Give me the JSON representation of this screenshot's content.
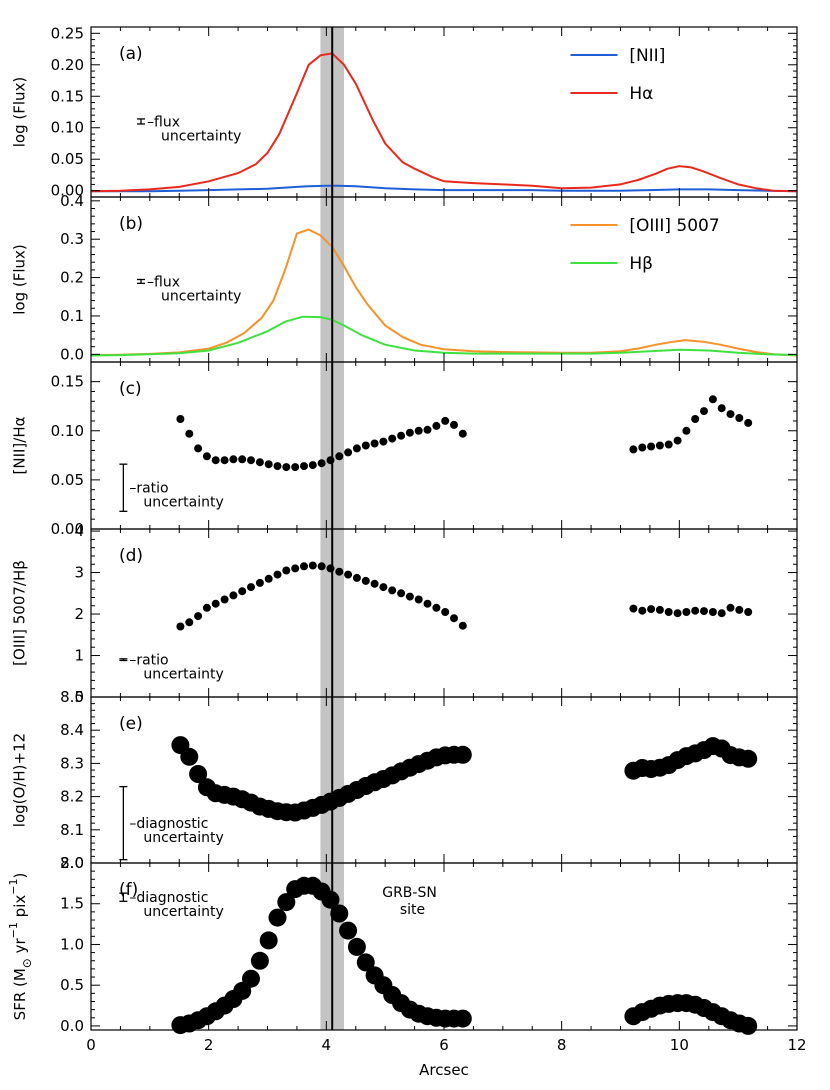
{
  "chart_data": {
    "type": "line",
    "xlabel": "Arcsec",
    "xlim": [
      0,
      12
    ],
    "xticks": [
      "0",
      "2",
      "4",
      "6",
      "8",
      "10",
      "12"
    ],
    "marker_line": {
      "x": 4.1,
      "band": [
        3.9,
        4.3
      ]
    },
    "site_label": [
      "GRB-SN",
      "site"
    ],
    "panels": [
      {
        "id": "a",
        "letter": "(a)",
        "type": "line",
        "ylabel": "log (Flux)",
        "ylim": [
          -0.01,
          0.26
        ],
        "yticks": [
          0.0,
          0.05,
          0.1,
          0.15,
          0.2,
          0.25
        ],
        "ytick_labels": [
          "0.00",
          "0.05",
          "0.10",
          "0.15",
          "0.20",
          "0.25"
        ],
        "uncertainty": {
          "lines": [
            "–flux",
            "uncertainty"
          ],
          "x": 0.85,
          "y": 0.11,
          "half": 0.004
        },
        "series": [
          {
            "name": "[NII]",
            "color": "#1f5fd6",
            "x": [
              0,
              0.5,
              1.0,
              1.5,
              2.0,
              2.5,
              3.0,
              3.5,
              3.7,
              4.0,
              4.2,
              4.5,
              5.0,
              5.5,
              6.0,
              6.5,
              7.0,
              7.5,
              8.0,
              8.5,
              9.0,
              9.5,
              10.0,
              10.5,
              11.0,
              11.5,
              12.0
            ],
            "y": [
              -0.001,
              -0.001,
              -0.001,
              0.0,
              0.001,
              0.002,
              0.003,
              0.006,
              0.007,
              0.008,
              0.008,
              0.007,
              0.004,
              0.002,
              0.001,
              0.001,
              0.001,
              0.001,
              0.0,
              0.0,
              0.0,
              0.001,
              0.002,
              0.002,
              0.001,
              0.0,
              -0.001
            ]
          },
          {
            "name": "Hα",
            "color": "#e8291c",
            "x": [
              0,
              0.5,
              1.0,
              1.5,
              2.0,
              2.5,
              2.8,
              3.0,
              3.2,
              3.5,
              3.7,
              3.9,
              4.1,
              4.3,
              4.5,
              4.8,
              5.0,
              5.3,
              5.5,
              5.8,
              6.0,
              6.5,
              7.0,
              7.5,
              8.0,
              8.5,
              9.0,
              9.3,
              9.6,
              9.8,
              10.0,
              10.2,
              10.4,
              10.7,
              11.0,
              11.3,
              11.6,
              12.0
            ],
            "y": [
              -0.001,
              0.0,
              0.002,
              0.006,
              0.015,
              0.028,
              0.042,
              0.06,
              0.09,
              0.155,
              0.2,
              0.215,
              0.218,
              0.2,
              0.17,
              0.11,
              0.075,
              0.045,
              0.035,
              0.022,
              0.015,
              0.012,
              0.01,
              0.008,
              0.004,
              0.005,
              0.01,
              0.017,
              0.027,
              0.035,
              0.039,
              0.037,
              0.031,
              0.02,
              0.01,
              0.004,
              0.0,
              -0.001
            ]
          }
        ]
      },
      {
        "id": "b",
        "letter": "(b)",
        "type": "line",
        "ylabel": "log (Flux)",
        "ylim": [
          -0.02,
          0.41
        ],
        "yticks": [
          0.0,
          0.1,
          0.2,
          0.3,
          0.4
        ],
        "ytick_labels": [
          "0.0",
          "0.1",
          "0.2",
          "0.3",
          "0.4"
        ],
        "uncertainty": {
          "lines": [
            "–flux",
            "uncertainty"
          ],
          "x": 0.85,
          "y": 0.19,
          "half": 0.005
        },
        "series": [
          {
            "name": "[OIII] 5007",
            "color": "#f5922a",
            "x": [
              0,
              0.5,
              1.0,
              1.5,
              2.0,
              2.3,
              2.6,
              2.9,
              3.1,
              3.3,
              3.5,
              3.7,
              3.9,
              4.1,
              4.3,
              4.5,
              4.7,
              5.0,
              5.3,
              5.6,
              6.0,
              6.5,
              7.0,
              7.5,
              8.0,
              8.5,
              9.0,
              9.3,
              9.6,
              9.9,
              10.1,
              10.4,
              10.7,
              11.0,
              11.3,
              11.6,
              12.0
            ],
            "y": [
              -0.002,
              -0.001,
              0.001,
              0.005,
              0.015,
              0.03,
              0.055,
              0.095,
              0.14,
              0.22,
              0.315,
              0.325,
              0.31,
              0.28,
              0.23,
              0.175,
              0.13,
              0.075,
              0.045,
              0.025,
              0.013,
              0.008,
              0.006,
              0.005,
              0.004,
              0.004,
              0.008,
              0.015,
              0.025,
              0.033,
              0.037,
              0.033,
              0.025,
              0.015,
              0.006,
              0.0,
              -0.003
            ]
          },
          {
            "name": "Hβ",
            "color": "#3ee23e",
            "x": [
              0,
              0.5,
              1.0,
              1.5,
              2.0,
              2.5,
              3.0,
              3.3,
              3.6,
              3.9,
              4.1,
              4.3,
              4.6,
              5.0,
              5.5,
              6.0,
              6.5,
              7.0,
              7.5,
              8.0,
              8.5,
              9.0,
              9.5,
              10.0,
              10.5,
              11.0,
              11.5,
              12.0
            ],
            "y": [
              -0.003,
              -0.002,
              0.0,
              0.003,
              0.01,
              0.03,
              0.06,
              0.085,
              0.098,
              0.097,
              0.09,
              0.075,
              0.05,
              0.025,
              0.01,
              0.004,
              0.002,
              0.002,
              0.002,
              0.002,
              0.002,
              0.004,
              0.008,
              0.012,
              0.01,
              0.004,
              0.0,
              -0.002
            ]
          }
        ]
      },
      {
        "id": "c",
        "letter": "(c)",
        "type": "scatter",
        "ylabel": "[NII]/Hα",
        "ylim": [
          0.0,
          0.17
        ],
        "yticks": [
          0.0,
          0.05,
          0.1,
          0.15
        ],
        "ytick_labels": [
          "0.00",
          "0.05",
          "0.10",
          "0.15"
        ],
        "marker_radius": 4,
        "uncertainty": {
          "lines": [
            "–ratio",
            "uncertainty"
          ],
          "x": 0.55,
          "y": 0.042,
          "half": 0.024
        },
        "series": [
          {
            "name": "",
            "color": "#000000",
            "x": [
              1.52,
              1.67,
              1.82,
              1.97,
              2.12,
              2.27,
              2.42,
              2.57,
              2.72,
              2.87,
              3.02,
              3.17,
              3.32,
              3.47,
              3.62,
              3.77,
              3.92,
              4.07,
              4.22,
              4.37,
              4.52,
              4.67,
              4.82,
              4.97,
              5.12,
              5.27,
              5.42,
              5.57,
              5.72,
              5.87,
              6.02,
              6.17,
              6.32,
              9.22,
              9.37,
              9.52,
              9.67,
              9.82,
              9.97,
              10.12,
              10.27,
              10.42,
              10.57,
              10.72,
              10.87,
              11.02,
              11.17
            ],
            "y": [
              0.112,
              0.097,
              0.082,
              0.074,
              0.07,
              0.07,
              0.071,
              0.071,
              0.07,
              0.068,
              0.066,
              0.064,
              0.063,
              0.063,
              0.064,
              0.065,
              0.067,
              0.07,
              0.074,
              0.078,
              0.082,
              0.085,
              0.087,
              0.089,
              0.092,
              0.095,
              0.098,
              0.1,
              0.101,
              0.105,
              0.11,
              0.106,
              0.097,
              0.081,
              0.083,
              0.084,
              0.085,
              0.086,
              0.09,
              0.1,
              0.112,
              0.12,
              0.132,
              0.123,
              0.117,
              0.113,
              0.108
            ]
          }
        ]
      },
      {
        "id": "d",
        "letter": "(d)",
        "type": "scatter",
        "ylabel": "[OIII] 5007/Hβ",
        "ylim": [
          0.0,
          4.05
        ],
        "yticks": [
          0,
          1,
          2,
          3,
          4
        ],
        "ytick_labels": [
          "0",
          "1",
          "2",
          "3",
          "4"
        ],
        "marker_radius": 4,
        "uncertainty": {
          "lines": [
            "–ratio",
            "uncertainty"
          ],
          "x": 0.55,
          "y": 0.9,
          "half": 0.02
        },
        "series": [
          {
            "name": "",
            "color": "#000000",
            "x": [
              1.52,
              1.67,
              1.82,
              1.97,
              2.12,
              2.27,
              2.42,
              2.57,
              2.72,
              2.87,
              3.02,
              3.17,
              3.32,
              3.47,
              3.62,
              3.77,
              3.92,
              4.07,
              4.22,
              4.37,
              4.52,
              4.67,
              4.82,
              4.97,
              5.12,
              5.27,
              5.42,
              5.57,
              5.72,
              5.87,
              6.02,
              6.17,
              6.32,
              9.22,
              9.37,
              9.52,
              9.67,
              9.82,
              9.97,
              10.12,
              10.27,
              10.42,
              10.57,
              10.72,
              10.87,
              11.02,
              11.17
            ],
            "y": [
              1.7,
              1.8,
              1.95,
              2.15,
              2.25,
              2.35,
              2.45,
              2.55,
              2.65,
              2.75,
              2.85,
              2.95,
              3.05,
              3.1,
              3.15,
              3.17,
              3.15,
              3.1,
              3.02,
              2.95,
              2.87,
              2.8,
              2.73,
              2.65,
              2.57,
              2.5,
              2.42,
              2.35,
              2.25,
              2.15,
              2.05,
              1.9,
              1.72,
              2.13,
              2.08,
              2.12,
              2.1,
              2.05,
              2.02,
              2.05,
              2.08,
              2.07,
              2.05,
              2.02,
              2.15,
              2.1,
              2.05
            ]
          }
        ]
      },
      {
        "id": "e",
        "letter": "(e)",
        "type": "scatter",
        "ylabel": "log(O/H)+12",
        "ylim": [
          8.0,
          8.5
        ],
        "yticks": [
          8.0,
          8.1,
          8.2,
          8.3,
          8.4,
          8.5
        ],
        "ytick_labels": [
          "8.0",
          "8.1",
          "8.2",
          "8.3",
          "8.4",
          "8.5"
        ],
        "marker_radius": 9,
        "uncertainty": {
          "lines": [
            "–diagnostic",
            "uncertainty"
          ],
          "x": 0.55,
          "y": 8.12,
          "half": 0.11
        },
        "series": [
          {
            "name": "",
            "color": "#000000",
            "x": [
              1.52,
              1.67,
              1.82,
              1.97,
              2.12,
              2.27,
              2.42,
              2.57,
              2.72,
              2.87,
              3.02,
              3.17,
              3.32,
              3.47,
              3.62,
              3.77,
              3.92,
              4.07,
              4.22,
              4.37,
              4.52,
              4.67,
              4.82,
              4.97,
              5.12,
              5.27,
              5.42,
              5.57,
              5.72,
              5.87,
              6.02,
              6.17,
              6.32,
              9.22,
              9.37,
              9.52,
              9.67,
              9.82,
              9.97,
              10.12,
              10.27,
              10.42,
              10.57,
              10.72,
              10.87,
              11.02,
              11.17
            ],
            "y": [
              8.355,
              8.32,
              8.268,
              8.228,
              8.21,
              8.205,
              8.2,
              8.192,
              8.182,
              8.17,
              8.163,
              8.156,
              8.153,
              8.152,
              8.158,
              8.166,
              8.175,
              8.185,
              8.196,
              8.208,
              8.22,
              8.232,
              8.243,
              8.253,
              8.264,
              8.276,
              8.287,
              8.298,
              8.308,
              8.318,
              8.324,
              8.326,
              8.326,
              8.278,
              8.286,
              8.283,
              8.287,
              8.295,
              8.31,
              8.322,
              8.33,
              8.34,
              8.352,
              8.345,
              8.325,
              8.318,
              8.314
            ]
          }
        ]
      },
      {
        "id": "f",
        "letter": "(f)",
        "type": "scatter",
        "ylabel_parts": [
          "SFR (M",
          "⊙",
          " yr",
          "−1",
          " pix",
          "−1",
          ")"
        ],
        "ylim": [
          -0.05,
          2.0
        ],
        "yticks": [
          0.0,
          0.5,
          1.0,
          1.5,
          2.0
        ],
        "ytick_labels": [
          "0.0",
          "0.5",
          "1.0",
          "1.5",
          "2.0"
        ],
        "marker_radius": 9,
        "uncertainty": {
          "lines": [
            "–diagnostic",
            "uncertainty"
          ],
          "x": 0.55,
          "y": 1.58,
          "half": 0.05
        },
        "series": [
          {
            "name": "",
            "color": "#000000",
            "x": [
              1.52,
              1.67,
              1.82,
              1.97,
              2.12,
              2.27,
              2.42,
              2.57,
              2.72,
              2.87,
              3.02,
              3.17,
              3.32,
              3.47,
              3.62,
              3.77,
              3.92,
              4.07,
              4.22,
              4.37,
              4.52,
              4.67,
              4.82,
              4.97,
              5.12,
              5.27,
              5.42,
              5.57,
              5.72,
              5.87,
              6.02,
              6.17,
              6.32,
              9.22,
              9.37,
              9.52,
              9.67,
              9.82,
              9.97,
              10.12,
              10.27,
              10.42,
              10.57,
              10.72,
              10.87,
              11.02,
              11.17
            ],
            "y": [
              0.01,
              0.03,
              0.07,
              0.12,
              0.18,
              0.25,
              0.33,
              0.43,
              0.58,
              0.8,
              1.05,
              1.33,
              1.52,
              1.68,
              1.72,
              1.72,
              1.65,
              1.55,
              1.38,
              1.17,
              0.97,
              0.78,
              0.62,
              0.5,
              0.38,
              0.28,
              0.2,
              0.15,
              0.12,
              0.1,
              0.09,
              0.09,
              0.09,
              0.12,
              0.17,
              0.21,
              0.25,
              0.27,
              0.28,
              0.28,
              0.26,
              0.22,
              0.17,
              0.12,
              0.07,
              0.03,
              0.0
            ]
          }
        ]
      }
    ]
  }
}
